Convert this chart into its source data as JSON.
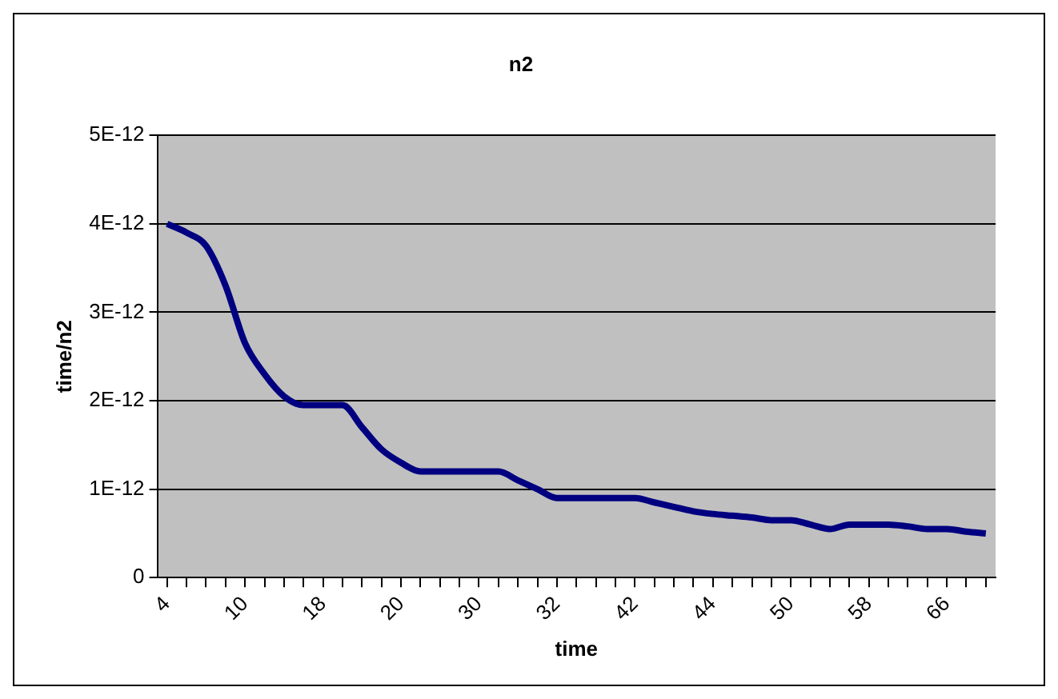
{
  "chart_data": {
    "type": "line",
    "title": "n2",
    "xlabel": "time",
    "ylabel": "time/n2",
    "categories": [
      "4",
      null,
      null,
      null,
      "10",
      null,
      null,
      null,
      "18",
      null,
      null,
      null,
      "20",
      null,
      null,
      null,
      "30",
      null,
      null,
      null,
      "32",
      null,
      null,
      null,
      "42",
      null,
      null,
      null,
      "44",
      null,
      null,
      null,
      "50",
      null,
      null,
      null,
      "58",
      null,
      null,
      null,
      "66",
      null,
      null
    ],
    "series": [
      {
        "color": "#000080",
        "values": [
          4e-12,
          3.9e-12,
          3.75e-12,
          3.3e-12,
          2.65e-12,
          2.3e-12,
          2.05e-12,
          1.95e-12,
          1.95e-12,
          1.95e-12,
          1.7e-12,
          1.45e-12,
          1.3e-12,
          1.2e-12,
          1.2e-12,
          1.2e-12,
          1.2e-12,
          1.2e-12,
          1.1e-12,
          1e-12,
          9e-13,
          9e-13,
          9e-13,
          9e-13,
          9e-13,
          8.5e-13,
          8e-13,
          7.5e-13,
          7.2e-13,
          7e-13,
          6.8e-13,
          6.5e-13,
          6.5e-13,
          6e-13,
          5.5e-13,
          6e-13,
          6e-13,
          6e-13,
          5.8e-13,
          5.5e-13,
          5.5e-13,
          5.2e-13,
          5e-13
        ]
      }
    ],
    "ylim": [
      0,
      5e-12
    ],
    "yticks": [
      0,
      {
        "value": 1e-12,
        "label": "1E-12"
      },
      {
        "value": 2e-12,
        "label": "2E-12"
      },
      {
        "value": 3e-12,
        "label": "3E-12"
      },
      {
        "value": 4e-12,
        "label": "4E-12"
      },
      {
        "value": 5e-12,
        "label": "5E-12"
      }
    ],
    "grid": "y",
    "legend": false,
    "marker": "none",
    "line_style": "solid"
  }
}
